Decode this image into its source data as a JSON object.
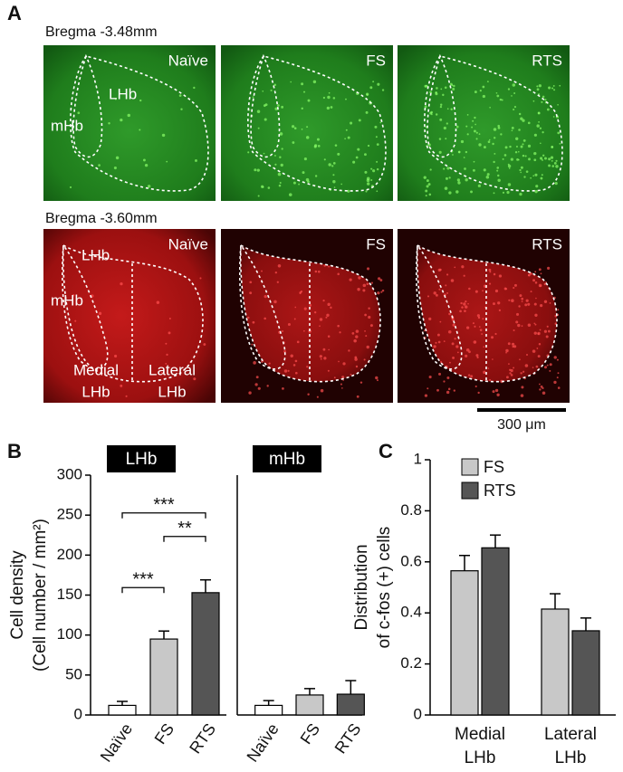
{
  "panel_labels": [
    "A",
    "B",
    "C"
  ],
  "panel_a": {
    "rows": [
      {
        "title": "Bregma -3.48mm",
        "conditions": [
          "Naïve",
          "FS",
          "RTS"
        ],
        "regions": [
          "LHb",
          "mHb"
        ]
      },
      {
        "title": "Bregma -3.60mm",
        "conditions": [
          "Naïve",
          "FS",
          "RTS"
        ],
        "regions": [
          "LHb",
          "mHb"
        ],
        "subregions": [
          [
            "Medial",
            "LHb"
          ],
          [
            "Lateral",
            "LHb"
          ]
        ]
      }
    ],
    "scale_bar": "300 μm"
  },
  "chart_data": [
    {
      "type": "bar",
      "title": "LHb",
      "ylabel": [
        "Cell density",
        "(Cell number / mm²)"
      ],
      "categories": [
        "Naïve",
        "FS",
        "RTS"
      ],
      "values": [
        12,
        95,
        153
      ],
      "errors": [
        5,
        10,
        16
      ],
      "colors": [
        "#ffffff",
        "#c8c8c8",
        "#555555"
      ],
      "ylim": [
        0,
        300
      ],
      "yticks": [
        0,
        50,
        100,
        150,
        200,
        250,
        300
      ],
      "annotations": [
        {
          "label": "***",
          "pair": [
            "Naïve",
            "RTS"
          ]
        },
        {
          "label": "**",
          "pair": [
            "FS",
            "RTS"
          ]
        },
        {
          "label": "***",
          "pair": [
            "Naïve",
            "FS"
          ]
        }
      ]
    },
    {
      "type": "bar",
      "title": "mHb",
      "categories": [
        "Naïve",
        "FS",
        "RTS"
      ],
      "values": [
        12,
        25,
        26
      ],
      "errors": [
        6,
        8,
        17
      ],
      "colors": [
        "#ffffff",
        "#c8c8c8",
        "#555555"
      ],
      "ylim": [
        0,
        300
      ]
    },
    {
      "type": "grouped-bar",
      "ylabel": [
        "Distribution",
        "of c-fos (+) cells"
      ],
      "categories": [
        "Medial LHb",
        "Lateral LHb"
      ],
      "series": [
        {
          "name": "FS",
          "color": "#c8c8c8",
          "values": [
            0.565,
            0.415
          ],
          "errors": [
            0.06,
            0.06
          ]
        },
        {
          "name": "RTS",
          "color": "#555555",
          "values": [
            0.655,
            0.33
          ],
          "errors": [
            0.05,
            0.05
          ]
        }
      ],
      "ylim": [
        0,
        1
      ],
      "yticks": [
        0,
        0.2,
        0.4,
        0.6,
        0.8,
        1
      ],
      "legend": "upper left"
    }
  ]
}
